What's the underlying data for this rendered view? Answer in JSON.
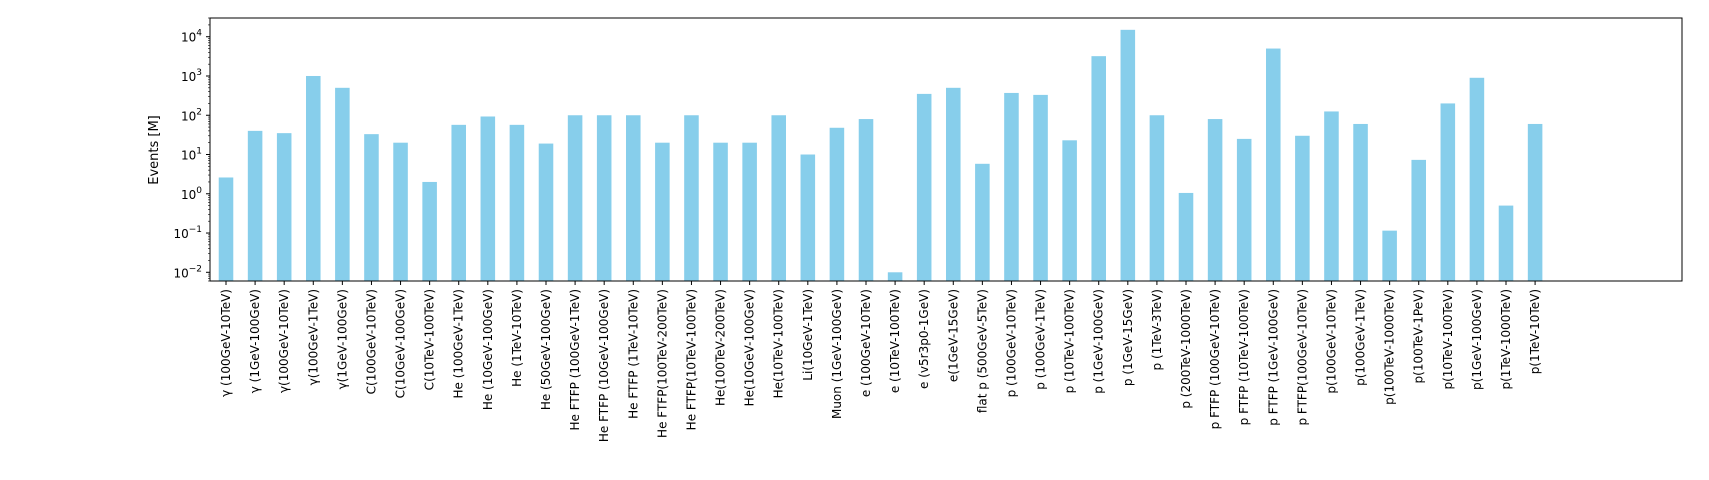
{
  "chart_data": {
    "type": "bar",
    "title": "",
    "xlabel": "",
    "ylabel": "Events [M]",
    "yscale": "log",
    "ylim": [
      0.006,
      30000
    ],
    "grid": false,
    "bar_color": "#87CEEB",
    "y_ticks": [
      {
        "base": "10",
        "exp": "-2"
      },
      {
        "base": "10",
        "exp": "-1"
      },
      {
        "base": "10",
        "exp": "0"
      },
      {
        "base": "10",
        "exp": "1"
      },
      {
        "base": "10",
        "exp": "2"
      },
      {
        "base": "10",
        "exp": "3"
      },
      {
        "base": "10",
        "exp": "4"
      }
    ],
    "categories": [
      "γ (100GeV-10TeV)",
      "γ (1GeV-100GeV)",
      "γ(100GeV-10TeV)",
      "γ(100GeV-1TeV)",
      "γ(1GeV-100GeV)",
      "C(100GeV-10TeV)",
      "C(10GeV-100GeV)",
      "C(10TeV-100TeV)",
      "He (100GeV-1TeV)",
      "He (10GeV-100GeV)",
      "He (1TeV-10TeV)",
      "He (50GeV-100GeV)",
      "He FTFP (100GeV-1TeV)",
      "He FTFP (10GeV-100GeV)",
      "He FTFP (1TeV-10TeV)",
      "He FTFP(100TeV-200TeV)",
      "He FTFP(10TeV-100TeV)",
      "He(100TeV-200TeV)",
      "He(10GeV-100GeV)",
      "He(10TeV-100TeV)",
      "Li(10GeV-1TeV)",
      "Muon (1GeV-100GeV)",
      "e (100GeV-10TeV)",
      "e (10TeV-100TeV)",
      "e (v5r3p0-1GeV)",
      "e(1GeV-15GeV)",
      "flat p (500GeV-5TeV)",
      "p (100GeV-10TeV)",
      "p (100GeV-1TeV)",
      "p (10TeV-100TeV)",
      "p (1GeV-100GeV)",
      "p (1GeV-15GeV)",
      "p (1TeV-3TeV)",
      "p (200TeV-1000TeV)",
      "p FTFP (100GeV-10TeV)",
      "p FTFP (10TeV-100TeV)",
      "p FTFP (1GeV-100GeV)",
      "p FTFP(100GeV-10TeV)",
      "p(100GeV-10TeV)",
      "p(100GeV-1TeV)",
      "p(100TeV-1000TeV)",
      "p(100TeV-1PeV)",
      "p(10TeV-100TeV)",
      "p(1GeV-100GeV)",
      "p(1TeV-1000TeV)",
      "p(1TeV-10TeV)"
    ],
    "values": [
      2.6,
      40,
      35,
      1000,
      500,
      33,
      20,
      2,
      57,
      93,
      57,
      19,
      100,
      100,
      100,
      20,
      100,
      20,
      20,
      100,
      10,
      48,
      80,
      0.01,
      350,
      500,
      5.8,
      370,
      330,
      23,
      3200,
      15000,
      100,
      1.05,
      80,
      25,
      5000,
      30,
      125,
      60,
      0.115,
      7.3,
      200,
      900,
      0.5,
      60
    ]
  }
}
